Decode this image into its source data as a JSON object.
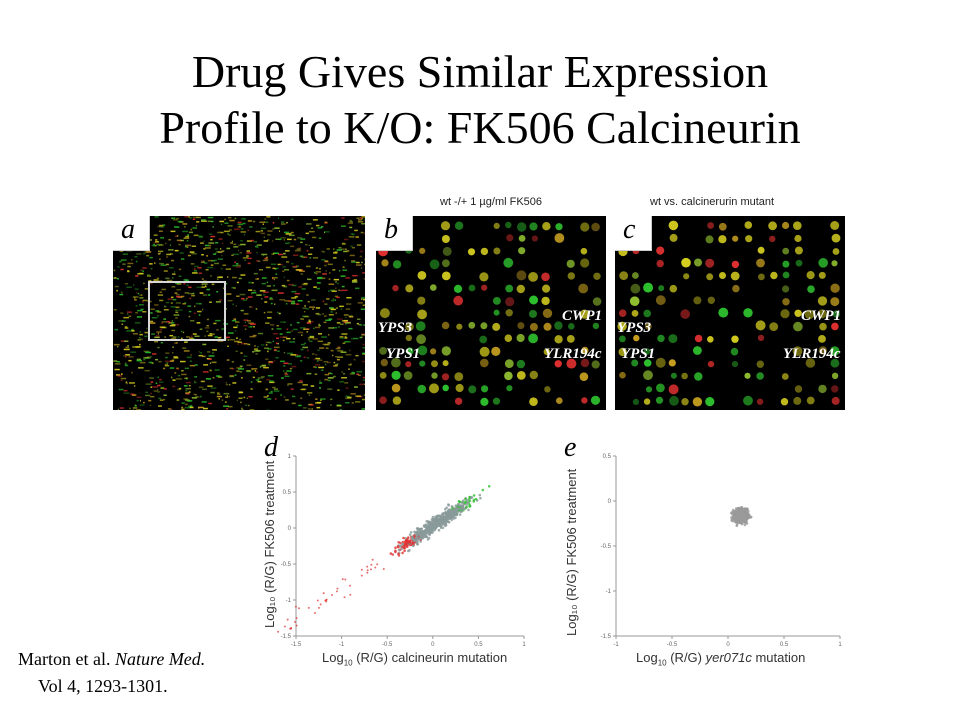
{
  "title": {
    "line1": "Drug Gives Similar Expression",
    "line2": "Profile to K/O: FK506 Calcineurin"
  },
  "panels": {
    "a": {
      "letter": "a"
    },
    "b": {
      "letter": "b",
      "caption": "wt -/+ 1 µg/ml FK506",
      "genes": [
        "YPS3",
        "YPS1",
        "CWP1",
        "YLR194c"
      ]
    },
    "c": {
      "letter": "c",
      "caption": "wt vs. calcinerurin mutant",
      "genes": [
        "YPS3",
        "YPS1",
        "CWP1",
        "YLR194c"
      ]
    }
  },
  "plots": {
    "d": {
      "letter": "d",
      "xlabel_prefix": "Log",
      "xlabel_sub": "10",
      "xlabel_rest": " (R/G) calcineurin mutation",
      "ylabel": "Log₁₀ (R/G) FK506 treatment",
      "xticks": [
        "-1.5",
        "-1",
        "-0.5",
        "0",
        "0.5",
        "1"
      ],
      "yticks": [
        "1",
        "0.5",
        "0",
        "-0.5",
        "-1",
        "-1.5"
      ]
    },
    "e": {
      "letter": "e",
      "xlabel_prefix": "Log",
      "xlabel_sub": "10",
      "xlabel_mid": " (R/G) ",
      "xlabel_italic": "yer071c",
      "xlabel_rest": " mutation",
      "ylabel": "Log₁₀ (R/G) FK506 treatment",
      "xticks": [
        "-1",
        "-0.5",
        "0",
        "0.5",
        "1"
      ],
      "yticks": [
        "0.5",
        "0",
        "-0.5",
        "-1",
        "-1.5"
      ]
    }
  },
  "citation": {
    "line1_plain": "Marton et al. ",
    "line1_italic": "Nature Med.",
    "line2": "Vol  4, 1293-1301."
  },
  "colors": {
    "red": "#e03030",
    "green": "#2ec02e",
    "yellow": "#d8d020",
    "gray": "#8a9a9a"
  }
}
